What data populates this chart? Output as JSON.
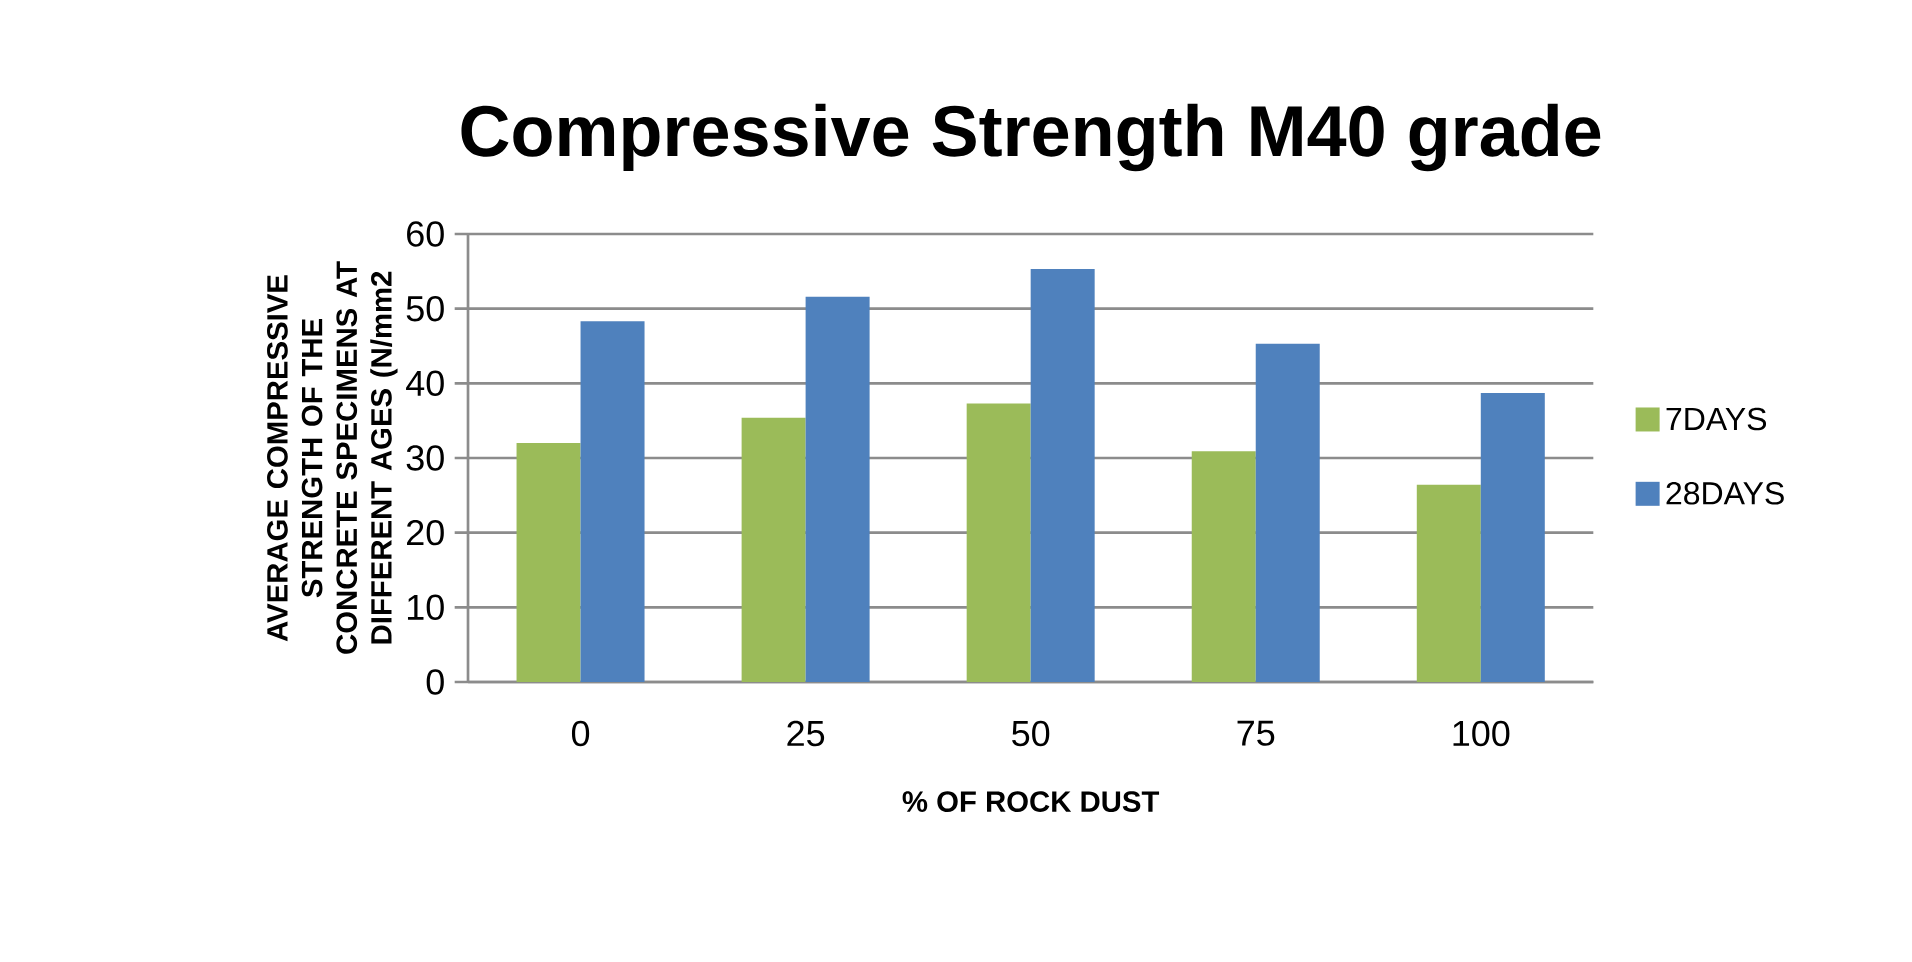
{
  "chart_data": {
    "type": "bar",
    "title": "Compressive Strength M40 grade",
    "xlabel": "% OF ROCK DUST",
    "ylabel": "AVERAGE COMPRESSIVE STRENGTH OF THE  CONCRETE SPECIMENS AT DIFFERENT AGES (N/mm2",
    "categories": [
      "0",
      "25",
      "50",
      "75",
      "100"
    ],
    "series": [
      {
        "name": "7DAYS",
        "color": "#9bbb59",
        "values": [
          32.0,
          35.4,
          37.3,
          30.9,
          26.4
        ]
      },
      {
        "name": "28DAYS",
        "color": "#4f81bd",
        "values": [
          48.3,
          51.6,
          55.3,
          45.3,
          38.7
        ]
      }
    ],
    "ylim": [
      0,
      60
    ],
    "yticks": [
      0,
      10,
      20,
      30,
      40,
      50,
      60
    ],
    "grid": "y",
    "legend": "right"
  }
}
